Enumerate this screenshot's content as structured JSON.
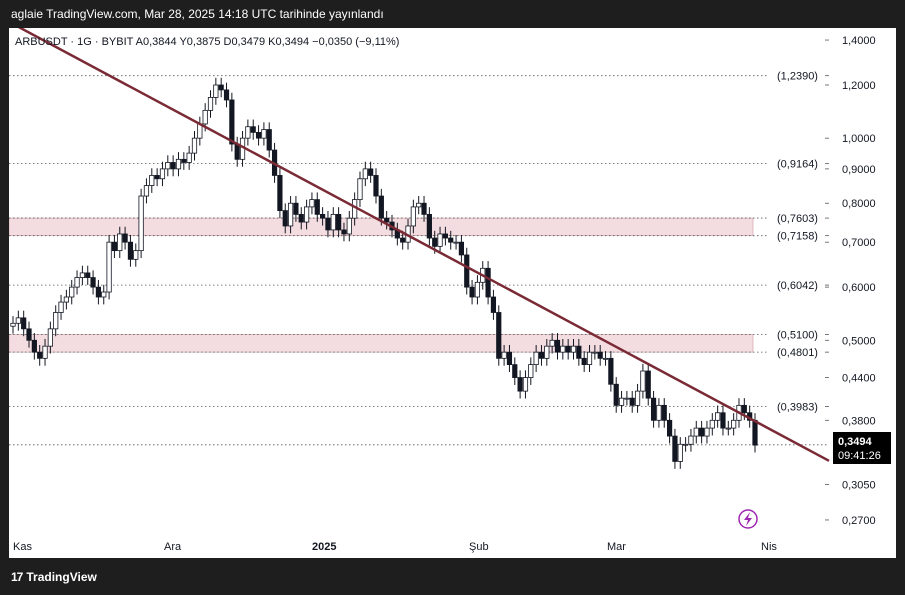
{
  "header": {
    "published_text": "aglaie TradingView.com, Mar 28, 2025 14:18 UTC tarihinde yayınlandı"
  },
  "footer": {
    "logo_text": "TradingView",
    "logo_icon": "tradingview-logo-icon"
  },
  "chart_data": {
    "type": "candlestick",
    "symbol": "ARBUSDT",
    "interval": "1G",
    "exchange": "BYBIT",
    "ohlc_legend": "ARBUSDT · 1G · BYBIT  A0,3844  Y0,3875  D0,3479  K0,3494  −0,0350 (−9,11%)",
    "scale": "log",
    "ylim": [
      0.26,
      1.45
    ],
    "y_ticks": [
      "1,4000",
      "1,2000",
      "1,0000",
      "0,9000",
      "0,8000",
      "0,7000",
      "0,6000",
      "0,5000",
      "0,4400",
      "0,3800",
      "0,3050",
      "0,2700"
    ],
    "x_ticks": [
      "Kas",
      "Ara",
      "2025",
      "Şub",
      "Mar",
      "Nis"
    ],
    "horizontal_levels": [
      {
        "label": "(1,2390)",
        "value": 1.239
      },
      {
        "label": "(0,9164)",
        "value": 0.9164
      },
      {
        "label": "(0,7603)",
        "value": 0.7603
      },
      {
        "label": "(0,7158)",
        "value": 0.7158
      },
      {
        "label": "(0,6042)",
        "value": 0.6042
      },
      {
        "label": "(0,5100)",
        "value": 0.51
      },
      {
        "label": "(0,4801)",
        "value": 0.4801
      },
      {
        "label": "(0,3983)",
        "value": 0.3983
      }
    ],
    "zones": [
      {
        "from": 0.7158,
        "to": 0.7603
      },
      {
        "from": 0.4801,
        "to": 0.51
      }
    ],
    "trendline": {
      "start": {
        "date": "Kas 1",
        "value": 1.45
      },
      "end": {
        "date": "Nis 2",
        "value": 0.333
      }
    },
    "last_price": {
      "value": "0,3494",
      "countdown": "09:41:26"
    },
    "closes": [
      0.53,
      0.54,
      0.52,
      0.5,
      0.48,
      0.47,
      0.49,
      0.52,
      0.55,
      0.57,
      0.58,
      0.6,
      0.62,
      0.63,
      0.62,
      0.6,
      0.58,
      0.59,
      0.7,
      0.68,
      0.72,
      0.7,
      0.66,
      0.68,
      0.82,
      0.85,
      0.88,
      0.87,
      0.9,
      0.92,
      0.9,
      0.93,
      0.92,
      0.95,
      1.0,
      1.05,
      1.1,
      1.15,
      1.2,
      1.18,
      1.14,
      0.98,
      0.93,
      1.0,
      1.04,
      1.02,
      1.0,
      1.03,
      0.96,
      0.88,
      0.78,
      0.74,
      0.8,
      0.77,
      0.75,
      0.79,
      0.81,
      0.77,
      0.76,
      0.73,
      0.77,
      0.73,
      0.72,
      0.76,
      0.81,
      0.87,
      0.9,
      0.88,
      0.82,
      0.76,
      0.75,
      0.73,
      0.71,
      0.7,
      0.74,
      0.79,
      0.8,
      0.77,
      0.71,
      0.69,
      0.72,
      0.71,
      0.7,
      0.7,
      0.67,
      0.6,
      0.58,
      0.61,
      0.64,
      0.58,
      0.55,
      0.47,
      0.48,
      0.46,
      0.44,
      0.42,
      0.44,
      0.46,
      0.48,
      0.47,
      0.49,
      0.5,
      0.48,
      0.49,
      0.48,
      0.49,
      0.47,
      0.46,
      0.48,
      0.48,
      0.47,
      0.47,
      0.43,
      0.4,
      0.41,
      0.41,
      0.4,
      0.42,
      0.45,
      0.41,
      0.38,
      0.4,
      0.38,
      0.36,
      0.33,
      0.35,
      0.35,
      0.36,
      0.37,
      0.36,
      0.37,
      0.38,
      0.39,
      0.37,
      0.37,
      0.38,
      0.4,
      0.39,
      0.38,
      0.349
    ]
  }
}
